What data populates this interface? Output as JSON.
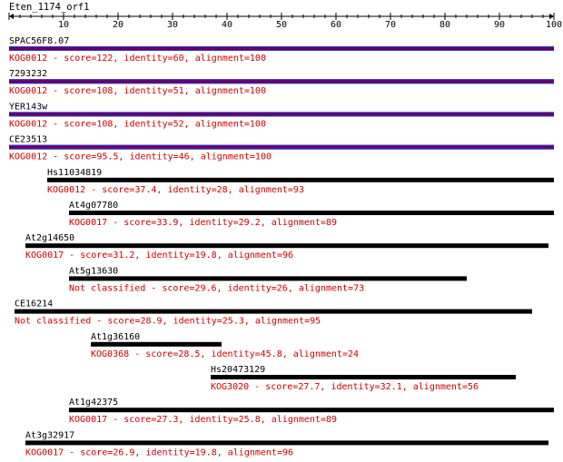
{
  "query": {
    "name": "Eten_1174_orf1",
    "axis": {
      "min": 0,
      "max": 100,
      "major_step": 10,
      "minor_step": 2,
      "tick_labels": [
        "10",
        "20",
        "30",
        "40",
        "50",
        "60",
        "70",
        "80",
        "90",
        "100"
      ]
    }
  },
  "colors": {
    "text": "#000000",
    "annotation": "#cc0000",
    "hit_bar": "#000000",
    "best_bar": "#660066"
  },
  "hits": [
    {
      "name": "SPAC56F8.07",
      "start": 0,
      "end": 100,
      "score": "122",
      "identity": "60",
      "alignment": "100",
      "kog": "KOG0012",
      "best": true,
      "caption": "KOG0012 - score=122, identity=60, alignment=100"
    },
    {
      "name": "7293232",
      "start": 0,
      "end": 100,
      "score": "108",
      "identity": "51",
      "alignment": "100",
      "kog": "KOG0012",
      "best": true,
      "caption": "KOG0012 - score=108, identity=51, alignment=100"
    },
    {
      "name": "YER143w",
      "start": 0,
      "end": 100,
      "score": "108",
      "identity": "52",
      "alignment": "100",
      "kog": "KOG0012",
      "best": true,
      "caption": "KOG0012 - score=108, identity=52, alignment=100"
    },
    {
      "name": "CE23513",
      "start": 0,
      "end": 100,
      "score": "95.5",
      "identity": "46",
      "alignment": "100",
      "kog": "KOG0012",
      "best": true,
      "caption": "KOG0012 - score=95.5, identity=46, alignment=100"
    },
    {
      "name": "Hs11034819",
      "start": 7,
      "end": 100,
      "score": "37.4",
      "identity": "28",
      "alignment": "93",
      "kog": "KOG0012",
      "best": false,
      "caption": "KOG0012 - score=37.4, identity=28, alignment=93"
    },
    {
      "name": "At4g07780",
      "start": 11,
      "end": 100,
      "score": "33.9",
      "identity": "29.2",
      "alignment": "89",
      "kog": "KOG0017",
      "best": false,
      "caption": "KOG0017 - score=33.9, identity=29.2, alignment=89"
    },
    {
      "name": "At2g14650",
      "start": 3,
      "end": 99,
      "score": "31.2",
      "identity": "19.8",
      "alignment": "96",
      "kog": "KOG0017",
      "best": false,
      "caption": "KOG0017 - score=31.2, identity=19.8, alignment=96"
    },
    {
      "name": "At5g13630",
      "start": 11,
      "end": 84,
      "score": "29.6",
      "identity": "26",
      "alignment": "73",
      "kog": "Not classified",
      "best": false,
      "caption": "Not classified - score=29.6, identity=26, alignment=73"
    },
    {
      "name": "CE16214",
      "start": 1,
      "end": 96,
      "score": "28.9",
      "identity": "25.3",
      "alignment": "95",
      "kog": "Not classified",
      "best": false,
      "caption": "Not classified - score=28.9, identity=25.3, alignment=95"
    },
    {
      "name": "At1g36160",
      "start": 15,
      "end": 39,
      "score": "28.5",
      "identity": "45.8",
      "alignment": "24",
      "kog": "KOG0368",
      "best": false,
      "caption": "KOG0368 - score=28.5, identity=45.8, alignment=24"
    },
    {
      "name": "Hs20473129",
      "start": 37,
      "end": 93,
      "score": "27.7",
      "identity": "32.1",
      "alignment": "56",
      "kog": "KOG3020",
      "best": false,
      "caption": "KOG3020 - score=27.7, identity=32.1, alignment=56"
    },
    {
      "name": "At1g42375",
      "start": 11,
      "end": 100,
      "score": "27.3",
      "identity": "25.8",
      "alignment": "89",
      "kog": "KOG0017",
      "best": false,
      "caption": "KOG0017 - score=27.3, identity=25.8, alignment=89"
    },
    {
      "name": "At3g32917",
      "start": 3,
      "end": 99,
      "score": "26.9",
      "identity": "19.8",
      "alignment": "96",
      "kog": "KOG0017",
      "best": false,
      "caption": "KOG0017 - score=26.9, identity=19.8, alignment=96"
    }
  ]
}
